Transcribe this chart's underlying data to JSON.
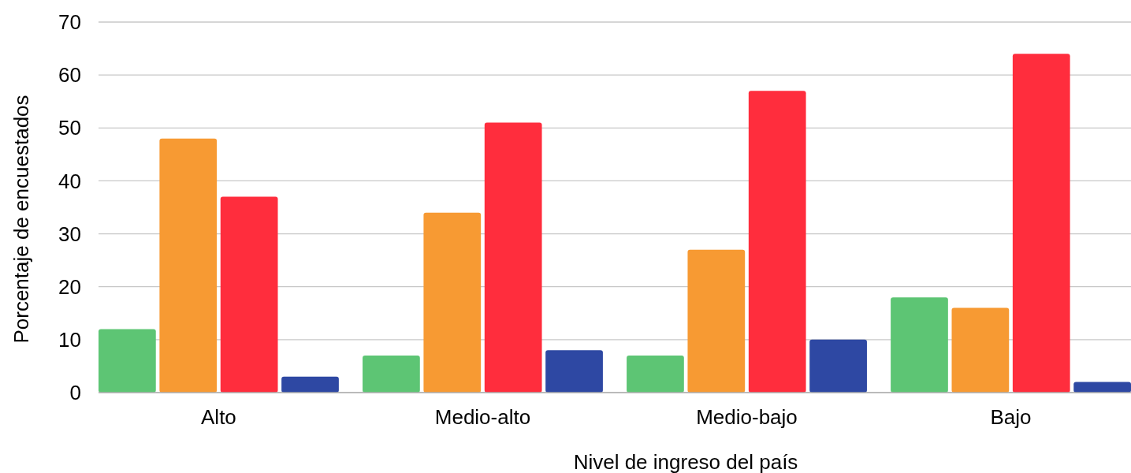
{
  "chart_data": {
    "type": "bar",
    "xlabel": "Nivel de ingreso del país",
    "ylabel": "Porcentaje de encuestados",
    "categories": [
      "Alto",
      "Medio-alto",
      "Medio-bajo",
      "Bajo"
    ],
    "series": [
      {
        "color": "#5dc574",
        "values": [
          12,
          7,
          7,
          18
        ]
      },
      {
        "color": "#f79a33",
        "values": [
          48,
          34,
          27,
          16
        ]
      },
      {
        "color": "#ff2d3d",
        "values": [
          37,
          51,
          57,
          64
        ]
      },
      {
        "color": "#2e48a3",
        "values": [
          3,
          8,
          10,
          2
        ]
      }
    ],
    "ylim": [
      0,
      70
    ],
    "yticks": [
      0,
      10,
      20,
      30,
      40,
      50,
      60,
      70
    ],
    "grid": "y"
  }
}
